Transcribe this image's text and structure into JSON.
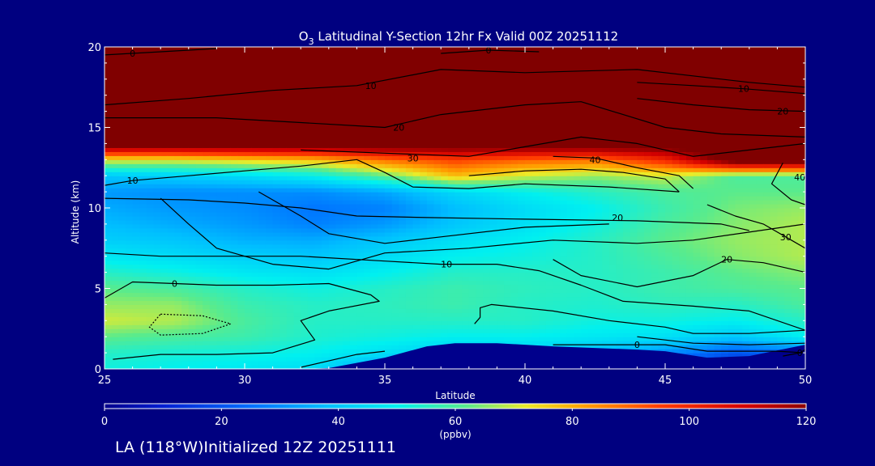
{
  "chart_data": {
    "type": "heatmap",
    "title": {
      "prefix": "O",
      "subscript": "3",
      "text": " Latitudinal Y-Section 12hr  Fx Valid 00Z 20251112"
    },
    "xlabel": "Latitude",
    "ylabel": "Altitude (km)",
    "xlim": [
      25,
      50
    ],
    "ylim": [
      0,
      20
    ],
    "xticks": [
      25,
      30,
      35,
      40,
      45,
      50
    ],
    "yticks": [
      0,
      5,
      10,
      15,
      20
    ],
    "colorbar": {
      "range": [
        0,
        120
      ],
      "ticks": [
        0,
        20,
        40,
        60,
        80,
        100,
        120
      ],
      "unit": "(ppbv)",
      "placement": "bottom"
    },
    "field": {
      "x": [
        25,
        27.5,
        30,
        32.5,
        35,
        37.5,
        40,
        42.5,
        45,
        47.5,
        50
      ],
      "y": [
        0,
        1,
        2,
        3,
        4,
        5,
        6,
        7,
        8,
        9,
        10,
        11,
        12,
        13,
        14,
        15,
        16,
        17,
        18,
        19,
        20
      ],
      "values": [
        [
          52,
          50,
          48,
          45,
          30,
          10,
          10,
          10,
          10,
          10,
          15
        ],
        [
          55,
          53,
          52,
          50,
          46,
          40,
          42,
          38,
          30,
          20,
          25
        ],
        [
          62,
          60,
          58,
          54,
          52,
          50,
          50,
          48,
          46,
          40,
          50
        ],
        [
          70,
          68,
          60,
          55,
          55,
          55,
          55,
          52,
          52,
          50,
          55
        ],
        [
          66,
          66,
          58,
          55,
          56,
          58,
          55,
          54,
          56,
          55,
          60
        ],
        [
          62,
          60,
          55,
          52,
          55,
          58,
          56,
          55,
          58,
          60,
          62
        ],
        [
          55,
          52,
          48,
          46,
          50,
          55,
          55,
          55,
          58,
          62,
          65
        ],
        [
          48,
          45,
          42,
          40,
          45,
          50,
          52,
          55,
          60,
          65,
          68
        ],
        [
          42,
          40,
          36,
          35,
          40,
          46,
          50,
          55,
          62,
          66,
          68
        ],
        [
          38,
          35,
          32,
          28,
          32,
          40,
          46,
          52,
          60,
          65,
          68
        ],
        [
          35,
          32,
          30,
          26,
          28,
          38,
          45,
          50,
          58,
          64,
          66
        ],
        [
          32,
          30,
          30,
          30,
          34,
          44,
          50,
          55,
          60,
          62,
          62
        ],
        [
          40,
          42,
          45,
          50,
          62,
          78,
          70,
          66,
          70,
          60,
          60
        ],
        [
          72,
          72,
          75,
          78,
          88,
          95,
          90,
          88,
          100,
          130,
          130
        ],
        [
          130,
          130,
          130,
          130,
          130,
          130,
          130,
          130,
          130,
          130,
          130
        ],
        [
          135,
          135,
          135,
          135,
          135,
          135,
          135,
          135,
          135,
          135,
          135
        ],
        [
          140,
          140,
          140,
          140,
          140,
          140,
          140,
          140,
          140,
          140,
          140
        ],
        [
          140,
          140,
          140,
          140,
          140,
          140,
          140,
          140,
          140,
          140,
          140
        ],
        [
          140,
          140,
          140,
          140,
          140,
          140,
          140,
          140,
          140,
          140,
          140
        ],
        [
          140,
          140,
          140,
          140,
          140,
          140,
          140,
          140,
          140,
          140,
          140
        ],
        [
          140,
          140,
          140,
          140,
          140,
          140,
          140,
          140,
          140,
          140,
          140
        ]
      ]
    },
    "terrain": [
      [
        25,
        0
      ],
      [
        32,
        0
      ],
      [
        33,
        0.05
      ],
      [
        35,
        0.7
      ],
      [
        36.5,
        1.4
      ],
      [
        37.5,
        1.6
      ],
      [
        39,
        1.6
      ],
      [
        41,
        1.4
      ],
      [
        44,
        1.2
      ],
      [
        45,
        1.1
      ],
      [
        46.5,
        0.7
      ],
      [
        48,
        0.8
      ],
      [
        50,
        1.5
      ]
    ],
    "contours": [
      {
        "label": "0",
        "label_at": [
          26,
          19.6
        ],
        "points": [
          [
            25,
            19.5
          ],
          [
            27,
            19.7
          ],
          [
            29,
            19.9
          ]
        ]
      },
      {
        "label": "0",
        "label_at": [
          38.7,
          19.8
        ],
        "points": [
          [
            37,
            19.6
          ],
          [
            38.7,
            19.8
          ],
          [
            40.5,
            19.7
          ]
        ]
      },
      {
        "label": "10",
        "label_at": [
          34.5,
          17.6
        ],
        "points": [
          [
            25,
            16.4
          ],
          [
            28,
            16.8
          ],
          [
            31,
            17.3
          ],
          [
            34,
            17.6
          ],
          [
            37,
            18.6
          ],
          [
            40,
            18.4
          ],
          [
            42,
            18.5
          ],
          [
            44,
            18.6
          ],
          [
            48,
            17.8
          ],
          [
            50,
            17.5
          ]
        ]
      },
      {
        "label": "10",
        "label_at": [
          47.8,
          17.4
        ],
        "points": [
          [
            44,
            17.8
          ],
          [
            46,
            17.6
          ],
          [
            47.8,
            17.4
          ],
          [
            50,
            17.1
          ]
        ]
      },
      {
        "label": "20",
        "label_at": [
          49.2,
          16.0
        ],
        "points": [
          [
            44,
            16.8
          ],
          [
            46,
            16.4
          ],
          [
            48,
            16.1
          ],
          [
            50,
            16.0
          ]
        ]
      },
      {
        "label": "20",
        "label_at": [
          35.5,
          15.0
        ],
        "points": [
          [
            25,
            15.6
          ],
          [
            29,
            15.6
          ],
          [
            32,
            15.3
          ],
          [
            35,
            15.0
          ],
          [
            37,
            15.8
          ],
          [
            40,
            16.4
          ],
          [
            42,
            16.6
          ],
          [
            45,
            15.0
          ],
          [
            47,
            14.6
          ],
          [
            50,
            14.4
          ]
        ]
      },
      {
        "label": "30",
        "label_at": [
          36.0,
          13.1
        ],
        "points": [
          [
            32,
            13.6
          ],
          [
            35,
            13.4
          ],
          [
            38,
            13.2
          ],
          [
            40,
            13.8
          ],
          [
            42,
            14.4
          ],
          [
            44,
            14.0
          ],
          [
            46,
            13.2
          ],
          [
            48,
            13.6
          ],
          [
            50,
            14.0
          ]
        ]
      },
      {
        "label": "40",
        "label_at": [
          42.5,
          13.0
        ],
        "points": [
          [
            41,
            13.2
          ],
          [
            42.5,
            13.1
          ],
          [
            44,
            12.5
          ],
          [
            45.5,
            12.0
          ],
          [
            46,
            11.2
          ]
        ]
      },
      {
        "label": "",
        "label_at": null,
        "points": [
          [
            38,
            12.0
          ],
          [
            40,
            12.3
          ],
          [
            42,
            12.4
          ],
          [
            43.5,
            12.2
          ],
          [
            45,
            11.8
          ],
          [
            45.5,
            11.0
          ]
        ]
      },
      {
        "label": "10",
        "label_at": [
          26,
          11.7
        ],
        "points": [
          [
            25,
            11.4
          ],
          [
            26,
            11.7
          ],
          [
            28,
            12.0
          ],
          [
            30,
            12.3
          ],
          [
            32,
            12.6
          ],
          [
            34,
            13.0
          ],
          [
            35,
            12.2
          ],
          [
            36,
            11.3
          ],
          [
            38,
            11.2
          ],
          [
            40,
            11.5
          ],
          [
            43,
            11.3
          ],
          [
            45.5,
            11.0
          ]
        ]
      },
      {
        "label": "20",
        "label_at": [
          43.3,
          9.4
        ],
        "points": [
          [
            25,
            10.6
          ],
          [
            28,
            10.5
          ],
          [
            30,
            10.3
          ],
          [
            32,
            10.0
          ],
          [
            34,
            9.5
          ],
          [
            36.5,
            9.4
          ],
          [
            40,
            9.3
          ],
          [
            44,
            9.2
          ],
          [
            47,
            9.0
          ],
          [
            48,
            8.6
          ]
        ]
      },
      {
        "label": "",
        "label_at": null,
        "points": [
          [
            27,
            10.6
          ],
          [
            28,
            9.0
          ],
          [
            29,
            7.5
          ],
          [
            31,
            6.5
          ],
          [
            33,
            6.2
          ],
          [
            35,
            7.2
          ],
          [
            38,
            7.5
          ],
          [
            41,
            8.0
          ],
          [
            44,
            7.8
          ],
          [
            46,
            8.0
          ],
          [
            48,
            8.5
          ],
          [
            50,
            9.0
          ]
        ]
      },
      {
        "label": "",
        "label_at": null,
        "points": [
          [
            30.5,
            11.0
          ],
          [
            32,
            9.5
          ],
          [
            33,
            8.4
          ],
          [
            35,
            7.8
          ],
          [
            37,
            8.2
          ],
          [
            40,
            8.8
          ],
          [
            43,
            9.0
          ]
        ]
      },
      {
        "label": "10",
        "label_at": [
          37.2,
          6.5
        ],
        "points": [
          [
            25,
            7.2
          ],
          [
            27,
            7.0
          ],
          [
            30,
            7.0
          ],
          [
            32,
            7.0
          ],
          [
            35,
            6.7
          ],
          [
            37,
            6.5
          ],
          [
            39,
            6.5
          ],
          [
            40.5,
            6.1
          ],
          [
            42,
            5.2
          ],
          [
            43.5,
            4.2
          ],
          [
            46,
            3.9
          ],
          [
            48,
            3.6
          ],
          [
            50,
            2.4
          ]
        ]
      },
      {
        "label": "20",
        "label_at": [
          47.2,
          6.8
        ],
        "points": [
          [
            41,
            6.8
          ],
          [
            42,
            5.8
          ],
          [
            44,
            5.1
          ],
          [
            46,
            5.8
          ],
          [
            47.2,
            6.8
          ],
          [
            48.5,
            6.6
          ],
          [
            50,
            6.0
          ]
        ]
      },
      {
        "label": "30",
        "label_at": [
          49.3,
          8.2
        ],
        "points": [
          [
            46.5,
            10.2
          ],
          [
            47.5,
            9.5
          ],
          [
            48.5,
            9.0
          ],
          [
            49.3,
            8.2
          ],
          [
            50,
            7.5
          ]
        ]
      },
      {
        "label": "40",
        "label_at": [
          49.8,
          11.9
        ],
        "points": [
          [
            49.2,
            12.8
          ],
          [
            48.8,
            11.5
          ],
          [
            49.5,
            10.5
          ],
          [
            50,
            10.2
          ]
        ]
      },
      {
        "label": "0",
        "label_at": [
          27.5,
          5.3
        ],
        "points": [
          [
            25,
            4.4
          ],
          [
            26,
            5.4
          ],
          [
            27.5,
            5.3
          ],
          [
            29,
            5.2
          ],
          [
            31,
            5.2
          ],
          [
            33,
            5.3
          ],
          [
            34.5,
            4.6
          ],
          [
            34.8,
            4.2
          ],
          [
            33,
            3.6
          ],
          [
            32,
            3.0
          ],
          [
            32.5,
            1.8
          ],
          [
            31,
            1.0
          ],
          [
            29,
            0.9
          ],
          [
            27,
            0.9
          ],
          [
            25.3,
            0.6
          ]
        ]
      },
      {
        "label": "0",
        "label_at": [
          44,
          1.5
        ],
        "points": [
          [
            41,
            1.5
          ],
          [
            43,
            1.5
          ],
          [
            45,
            1.5
          ],
          [
            46.5,
            1.1
          ],
          [
            47.5,
            1.1
          ],
          [
            49,
            1.1
          ],
          [
            50,
            1.0
          ]
        ]
      },
      {
        "label": "",
        "label_at": null,
        "points": [
          [
            32,
            0.1
          ],
          [
            34,
            0.9
          ],
          [
            35,
            1.1
          ]
        ]
      },
      {
        "label": "",
        "label_at": null,
        "points": [
          [
            38.2,
            2.8
          ],
          [
            38.4,
            3.2
          ],
          [
            38.4,
            3.8
          ],
          [
            38.8,
            4.0
          ],
          [
            41,
            3.6
          ],
          [
            43,
            3.0
          ],
          [
            45,
            2.6
          ],
          [
            46,
            2.2
          ],
          [
            48,
            2.2
          ],
          [
            50,
            2.4
          ]
        ]
      },
      {
        "label": "",
        "label_at": null,
        "points": [
          [
            44,
            2.0
          ],
          [
            46,
            1.6
          ],
          [
            48,
            1.5
          ],
          [
            50,
            1.6
          ]
        ]
      },
      {
        "label": "",
        "label_at": null,
        "dashed": true,
        "points": [
          [
            27,
            3.4
          ],
          [
            28.5,
            3.3
          ],
          [
            29.5,
            2.8
          ],
          [
            28.5,
            2.2
          ],
          [
            27,
            2.1
          ],
          [
            26.6,
            2.6
          ],
          [
            27,
            3.4
          ]
        ]
      },
      {
        "label": "0",
        "label_at": [
          49.8,
          1.0
        ],
        "points": [
          [
            49.2,
            0.8
          ],
          [
            49.8,
            1.0
          ],
          [
            50,
            1.2
          ]
        ]
      }
    ]
  },
  "footer": {
    "text": "LA (118°W)Initialized 12Z 20251111"
  }
}
